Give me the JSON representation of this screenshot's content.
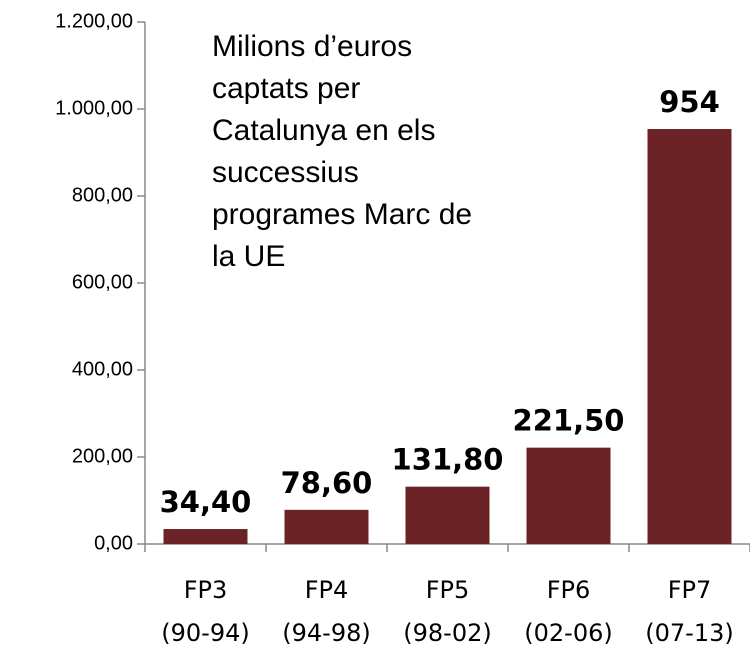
{
  "chart_data": {
    "type": "bar",
    "title": [
      "Milions d’euros",
      "captats per",
      "Catalunya en els",
      "successius",
      "programes Marc de",
      "la UE"
    ],
    "categories": [
      [
        "FP3",
        "(90-94)"
      ],
      [
        "FP4",
        "(94-98)"
      ],
      [
        "FP5",
        "(98-02)"
      ],
      [
        "FP6",
        "(02-06)"
      ],
      [
        "FP7",
        "(07-13)"
      ]
    ],
    "values": [
      34.4,
      78.6,
      131.8,
      221.5,
      954
    ],
    "value_labels": [
      "34,40",
      "78,60",
      "131,80",
      "221,50",
      "954"
    ],
    "color": "#6b2326",
    "ylim": [
      0,
      1200
    ],
    "yticks": [
      {
        "value": 0,
        "label": "0,00"
      },
      {
        "value": 200,
        "label": "200,00"
      },
      {
        "value": 400,
        "label": "400,00"
      },
      {
        "value": 600,
        "label": "600,00"
      },
      {
        "value": 800,
        "label": "800,00"
      },
      {
        "value": 1000,
        "label": "1.000,00"
      },
      {
        "value": 1200,
        "label": "1.200,00"
      }
    ],
    "grid": false
  }
}
